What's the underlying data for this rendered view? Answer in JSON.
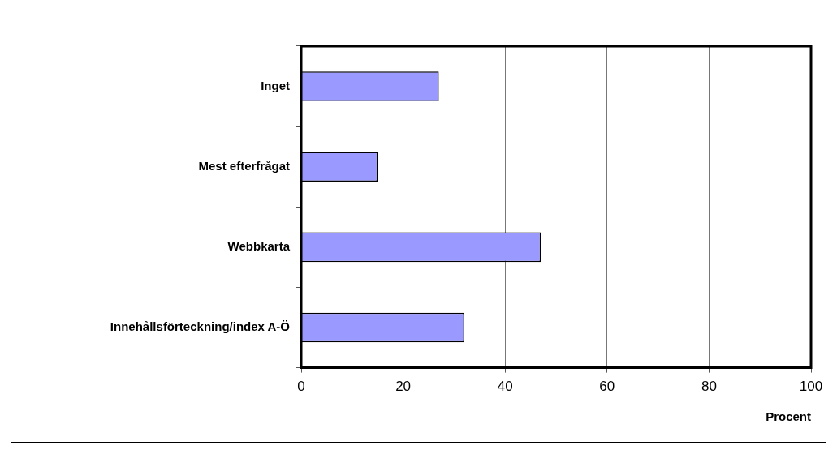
{
  "chart_data": {
    "type": "bar",
    "orientation": "horizontal",
    "xlabel": "Procent",
    "categories": [
      "Inget",
      "Mest efterfrågat",
      "Webbkarta",
      "Innehållsförteckning/index A-Ö"
    ],
    "values": [
      27,
      15,
      47,
      32
    ],
    "color": "#9999ff",
    "xlim": [
      0,
      100
    ],
    "xticks": [
      0,
      20,
      40,
      60,
      80,
      100
    ],
    "grid": "x"
  }
}
